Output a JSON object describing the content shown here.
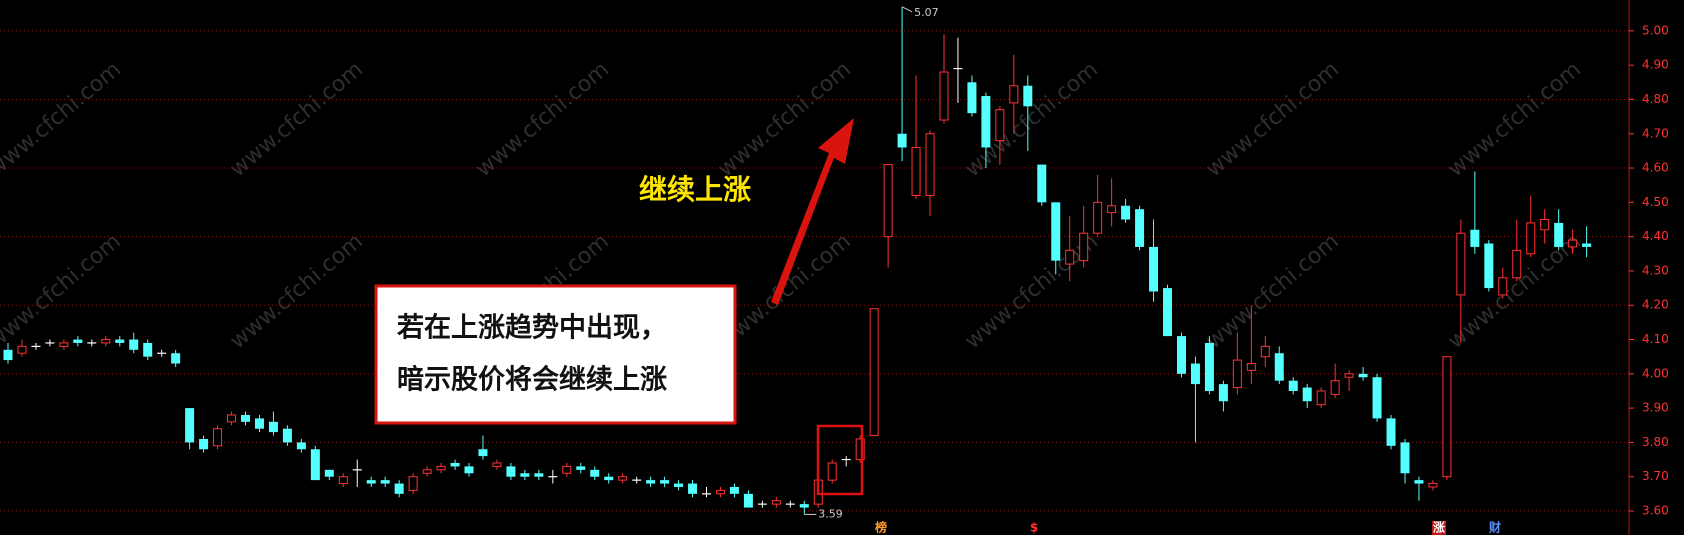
{
  "chart_data": {
    "type": "candlestick",
    "up_color": "#ff3232",
    "down_color": "#54ffff",
    "doji_color": "#ffffff",
    "open": [
      4.07,
      4.06,
      4.08,
      4.09,
      4.08,
      4.1,
      4.09,
      4.09,
      4.1,
      4.1,
      4.09,
      4.06,
      4.06,
      3.9,
      3.81,
      3.79,
      3.86,
      3.88,
      3.87,
      3.86,
      3.84,
      3.8,
      3.78,
      3.72,
      3.68,
      3.72,
      3.69,
      3.69,
      3.68,
      3.66,
      3.71,
      3.72,
      3.74,
      3.73,
      3.78,
      3.73,
      3.73,
      3.71,
      3.71,
      3.7,
      3.71,
      3.73,
      3.72,
      3.7,
      3.69,
      3.69,
      3.69,
      3.69,
      3.68,
      3.68,
      3.65,
      3.65,
      3.67,
      3.65,
      3.62,
      3.62,
      3.62,
      3.62,
      3.62,
      3.69,
      3.75,
      3.75,
      3.82,
      4.4,
      4.7,
      4.52,
      4.52,
      4.74,
      4.89,
      4.85,
      4.81,
      4.68,
      4.79,
      4.84,
      4.61,
      4.5,
      4.32,
      4.33,
      4.41,
      4.47,
      4.49,
      4.48,
      4.37,
      4.25,
      4.11,
      4.03,
      4.09,
      3.97,
      3.96,
      4.01,
      4.05,
      4.06,
      3.98,
      3.96,
      3.91,
      3.94,
      3.99,
      4.0,
      3.99,
      3.87,
      3.8,
      3.69,
      3.67,
      3.7,
      4.23,
      4.42,
      4.38,
      4.23,
      4.28,
      4.35,
      4.42,
      4.44,
      4.37,
      4.38
    ],
    "high": [
      4.09,
      4.1,
      4.09,
      4.1,
      4.1,
      4.11,
      4.1,
      4.11,
      4.11,
      4.12,
      4.1,
      4.07,
      4.07,
      3.9,
      3.82,
      3.85,
      3.89,
      3.89,
      3.88,
      3.89,
      3.85,
      3.81,
      3.79,
      3.72,
      3.71,
      3.75,
      3.7,
      3.7,
      3.69,
      3.71,
      3.73,
      3.74,
      3.75,
      3.74,
      3.82,
      3.75,
      3.74,
      3.72,
      3.72,
      3.72,
      3.74,
      3.74,
      3.73,
      3.71,
      3.71,
      3.7,
      3.7,
      3.7,
      3.69,
      3.69,
      3.67,
      3.67,
      3.68,
      3.66,
      3.63,
      3.64,
      3.63,
      3.63,
      3.7,
      3.75,
      3.76,
      3.82,
      4.19,
      4.61,
      5.07,
      4.87,
      4.71,
      4.99,
      4.98,
      4.87,
      4.82,
      4.78,
      4.93,
      4.87,
      4.61,
      4.5,
      4.46,
      4.49,
      4.58,
      4.57,
      4.51,
      4.49,
      4.45,
      4.26,
      4.12,
      4.05,
      4.11,
      3.98,
      4.12,
      4.2,
      4.11,
      4.08,
      3.99,
      3.97,
      3.96,
      4.03,
      4.01,
      4.02,
      4.0,
      3.88,
      3.81,
      3.7,
      3.69,
      4.05,
      4.45,
      4.59,
      4.39,
      4.31,
      4.45,
      4.52,
      4.48,
      4.48,
      4.42,
      4.43
    ],
    "low": [
      4.03,
      4.05,
      4.07,
      4.08,
      4.07,
      4.08,
      4.08,
      4.08,
      4.08,
      4.06,
      4.04,
      4.05,
      4.02,
      3.78,
      3.77,
      3.78,
      3.85,
      3.85,
      3.83,
      3.82,
      3.79,
      3.77,
      3.69,
      3.69,
      3.67,
      3.67,
      3.67,
      3.67,
      3.64,
      3.65,
      3.7,
      3.71,
      3.72,
      3.7,
      3.75,
      3.72,
      3.69,
      3.69,
      3.69,
      3.68,
      3.7,
      3.71,
      3.69,
      3.68,
      3.68,
      3.68,
      3.67,
      3.67,
      3.66,
      3.64,
      3.64,
      3.64,
      3.64,
      3.61,
      3.61,
      3.61,
      3.61,
      3.59,
      3.61,
      3.68,
      3.73,
      3.74,
      3.82,
      4.31,
      4.62,
      4.51,
      4.46,
      4.73,
      4.79,
      4.75,
      4.6,
      4.61,
      4.7,
      4.65,
      4.49,
      4.29,
      4.27,
      4.31,
      4.4,
      4.43,
      4.44,
      4.36,
      4.21,
      4.11,
      3.99,
      3.8,
      3.94,
      3.89,
      3.94,
      3.97,
      4.02,
      3.97,
      3.94,
      3.9,
      3.9,
      3.93,
      3.95,
      3.98,
      3.86,
      3.78,
      3.68,
      3.63,
      3.66,
      3.69,
      4.09,
      4.35,
      4.24,
      4.22,
      4.27,
      4.34,
      4.38,
      4.36,
      4.35,
      4.34
    ],
    "close": [
      4.04,
      4.08,
      4.08,
      4.09,
      4.09,
      4.09,
      4.09,
      4.1,
      4.09,
      4.07,
      4.05,
      4.06,
      4.03,
      3.8,
      3.78,
      3.84,
      3.88,
      3.86,
      3.84,
      3.83,
      3.8,
      3.78,
      3.69,
      3.7,
      3.7,
      3.72,
      3.68,
      3.68,
      3.65,
      3.7,
      3.72,
      3.73,
      3.73,
      3.71,
      3.76,
      3.74,
      3.7,
      3.7,
      3.7,
      3.7,
      3.73,
      3.72,
      3.7,
      3.69,
      3.7,
      3.69,
      3.68,
      3.68,
      3.67,
      3.65,
      3.65,
      3.66,
      3.65,
      3.61,
      3.62,
      3.63,
      3.62,
      3.61,
      3.69,
      3.74,
      3.75,
      3.81,
      4.19,
      4.61,
      4.66,
      4.66,
      4.7,
      4.88,
      4.89,
      4.76,
      4.66,
      4.77,
      4.84,
      4.78,
      4.5,
      4.33,
      4.36,
      4.41,
      4.5,
      4.49,
      4.45,
      4.37,
      4.24,
      4.11,
      4.0,
      3.97,
      3.95,
      3.92,
      4.04,
      4.03,
      4.08,
      3.98,
      3.95,
      3.92,
      3.95,
      3.98,
      4.0,
      3.99,
      3.87,
      3.79,
      3.71,
      3.68,
      3.68,
      4.05,
      4.41,
      4.37,
      4.25,
      4.28,
      4.36,
      4.44,
      4.45,
      4.37,
      4.39,
      4.37
    ],
    "ylim": [
      3.53,
      5.09
    ],
    "yticks": [
      {
        "value": 3.6,
        "label": "3.60"
      },
      {
        "value": 3.7,
        "label": "3.70"
      },
      {
        "value": 3.8,
        "label": "3.80"
      },
      {
        "value": 3.9,
        "label": "3.90"
      },
      {
        "value": 4.0,
        "label": "4.00"
      },
      {
        "value": 4.1,
        "label": "4.10"
      },
      {
        "value": 4.2,
        "label": "4.20"
      },
      {
        "value": 4.3,
        "label": "4.30"
      },
      {
        "value": 4.4,
        "label": "4.40"
      },
      {
        "value": 4.5,
        "label": "4.50"
      },
      {
        "value": 4.6,
        "label": "4.60"
      },
      {
        "value": 4.7,
        "label": "4.70"
      },
      {
        "value": 4.8,
        "label": "4.80"
      },
      {
        "value": 4.9,
        "label": "4.90"
      },
      {
        "value": 5.0,
        "label": "5.00"
      }
    ],
    "grid": true,
    "max_label": "5.07",
    "min_label": "3.59",
    "annotation": "继续上涨",
    "note_lines": [
      "若在上涨趋势中出现，",
      "暗示股价将会继续上涨"
    ],
    "markers": [
      "榜",
      "$",
      "涨",
      "财"
    ],
    "watermark": "www.cfchi.com"
  }
}
